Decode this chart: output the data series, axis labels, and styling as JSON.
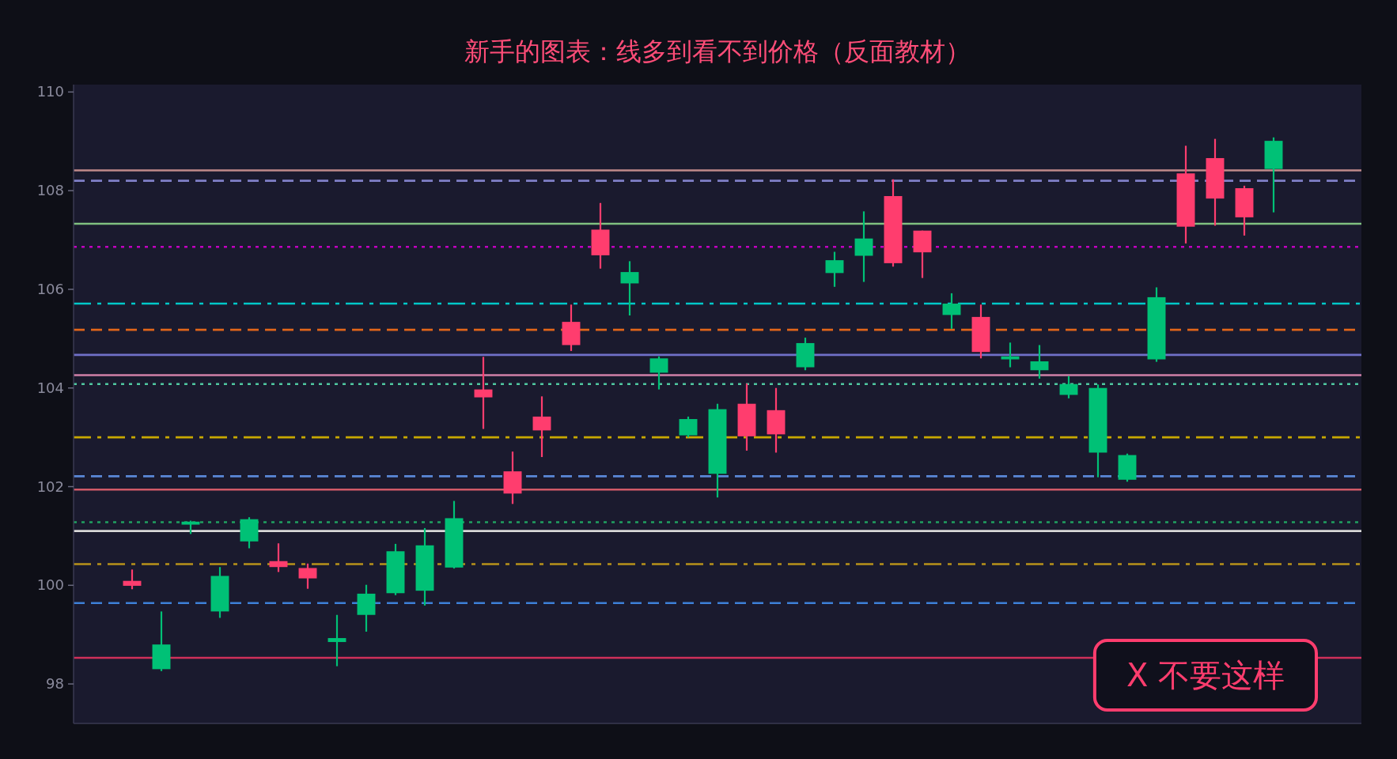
{
  "chart_data": {
    "type": "candlestick",
    "title": "新手的图表：线多到看不到价格（反面教材）",
    "categories": [
      null,
      null,
      null,
      null,
      null,
      null,
      null,
      null,
      null,
      null,
      null,
      null,
      null,
      null,
      null,
      null,
      null,
      null,
      null,
      null,
      null,
      null,
      null,
      null,
      null,
      null,
      null,
      null,
      null,
      null,
      null,
      null,
      null,
      null,
      null,
      null,
      null,
      null,
      null,
      null
    ],
    "ohlc": [
      [
        100.09,
        100.32,
        99.92,
        99.99
      ],
      [
        98.3,
        99.47,
        98.26,
        98.8
      ],
      [
        101.23,
        101.31,
        101.04,
        101.29
      ],
      [
        99.47,
        100.37,
        99.34,
        100.19
      ],
      [
        100.89,
        101.38,
        100.75,
        101.34
      ],
      [
        100.49,
        100.85,
        100.27,
        100.37
      ],
      [
        100.35,
        100.44,
        99.93,
        100.14
      ],
      [
        98.85,
        99.4,
        98.36,
        98.93
      ],
      [
        99.4,
        100.01,
        99.06,
        99.83
      ],
      [
        99.84,
        100.84,
        99.8,
        100.69
      ],
      [
        99.89,
        101.16,
        99.59,
        100.81
      ],
      [
        100.36,
        101.71,
        100.34,
        101.36
      ],
      [
        103.97,
        104.63,
        103.17,
        103.81
      ],
      [
        102.31,
        102.71,
        101.65,
        101.86
      ],
      [
        103.42,
        103.83,
        102.6,
        103.14
      ],
      [
        105.34,
        105.69,
        104.75,
        104.87
      ],
      [
        107.21,
        107.75,
        106.42,
        106.69
      ],
      [
        106.12,
        106.57,
        105.47,
        106.35
      ],
      [
        104.31,
        104.64,
        103.97,
        104.6
      ],
      [
        103.04,
        103.42,
        103.0,
        103.37
      ],
      [
        102.26,
        103.68,
        101.78,
        103.57
      ],
      [
        103.68,
        104.09,
        102.73,
        103.02
      ],
      [
        103.55,
        104.0,
        102.69,
        103.06
      ],
      [
        104.42,
        105.02,
        104.36,
        104.91
      ],
      [
        106.33,
        106.76,
        106.05,
        106.59
      ],
      [
        106.68,
        107.58,
        106.15,
        107.03
      ],
      [
        107.89,
        108.23,
        106.46,
        106.53
      ],
      [
        107.19,
        107.19,
        106.23,
        106.75
      ],
      [
        105.48,
        105.92,
        105.2,
        105.71
      ],
      [
        105.44,
        105.69,
        104.6,
        104.73
      ],
      [
        104.58,
        104.92,
        104.42,
        104.64
      ],
      [
        104.36,
        104.87,
        104.19,
        104.54
      ],
      [
        103.86,
        104.24,
        103.79,
        104.08
      ],
      [
        102.69,
        104.07,
        102.19,
        104.0
      ],
      [
        102.14,
        102.67,
        102.1,
        102.64
      ],
      [
        104.58,
        106.04,
        104.53,
        105.84
      ],
      [
        108.35,
        108.91,
        106.93,
        107.27
      ],
      [
        108.66,
        109.05,
        107.29,
        107.84
      ],
      [
        108.05,
        108.1,
        107.09,
        107.46
      ],
      [
        108.44,
        109.08,
        107.56,
        109.01
      ]
    ],
    "colors": [
      "#ff3d6e",
      "#00c176",
      "#00c176",
      "#00c176",
      "#00c176",
      "#ff3d6e",
      "#ff3d6e",
      "#00c176",
      "#00c176",
      "#00c176",
      "#00c176",
      "#00c176",
      "#ff3d6e",
      "#ff3d6e",
      "#ff3d6e",
      "#ff3d6e",
      "#ff3d6e",
      "#00c176",
      "#00c176",
      "#00c176",
      "#00c176",
      "#ff3d6e",
      "#ff3d6e",
      "#00c176",
      "#00c176",
      "#00c176",
      "#ff3d6e",
      "#ff3d6e",
      "#00c176",
      "#ff3d6e",
      "#00c176",
      "#00c176",
      "#00c176",
      "#00c176",
      "#00c176",
      "#00c176",
      "#ff3d6e",
      "#ff3d6e",
      "#ff3d6e",
      "#00c176"
    ],
    "ylim": [
      97.2,
      110.15
    ],
    "yticks": [
      98,
      100,
      102,
      104,
      106,
      108,
      110
    ],
    "ref_lines": [
      {
        "axis": "y",
        "value": 108.41,
        "color": "#c08a8a",
        "line_style": "solid"
      },
      {
        "axis": "y",
        "value": 108.2,
        "color": "#8080c8",
        "line_style": "dashed"
      },
      {
        "axis": "y",
        "value": 107.33,
        "color": "#80c080",
        "line_style": "solid"
      },
      {
        "axis": "y",
        "value": 106.86,
        "color": "#c000c0",
        "line_style": "dotted"
      },
      {
        "axis": "y",
        "value": 105.71,
        "color": "#00c8c8",
        "line_style": "dashdot"
      },
      {
        "axis": "y",
        "value": 105.18,
        "color": "#e0651a",
        "line_style": "dashed"
      },
      {
        "axis": "y",
        "value": 104.67,
        "color": "#7070c8",
        "line_style": "solid"
      },
      {
        "axis": "y",
        "value": 104.26,
        "color": "#d080a8",
        "line_style": "solid"
      },
      {
        "axis": "y",
        "value": 104.08,
        "color": "#50c8a0",
        "line_style": "dotted"
      },
      {
        "axis": "y",
        "value": 103.0,
        "color": "#c8a800",
        "line_style": "dashdot"
      },
      {
        "axis": "y",
        "value": 102.21,
        "color": "#5a88d8",
        "line_style": "dashed"
      },
      {
        "axis": "y",
        "value": 101.94,
        "color": "#d05a68",
        "line_style": "solid"
      },
      {
        "axis": "y",
        "value": 101.28,
        "color": "#20a060",
        "line_style": "dotted"
      },
      {
        "axis": "y",
        "value": 101.1,
        "color": "#d8d8d8",
        "line_style": "solid"
      },
      {
        "axis": "y",
        "value": 100.43,
        "color": "#b8921a",
        "line_style": "dashdot"
      },
      {
        "axis": "y",
        "value": 99.64,
        "color": "#3d80d8",
        "line_style": "dashed"
      },
      {
        "axis": "y",
        "value": 98.53,
        "color": "#d0305a",
        "line_style": "solid"
      }
    ],
    "annotations": [
      "X 不要这样"
    ]
  }
}
